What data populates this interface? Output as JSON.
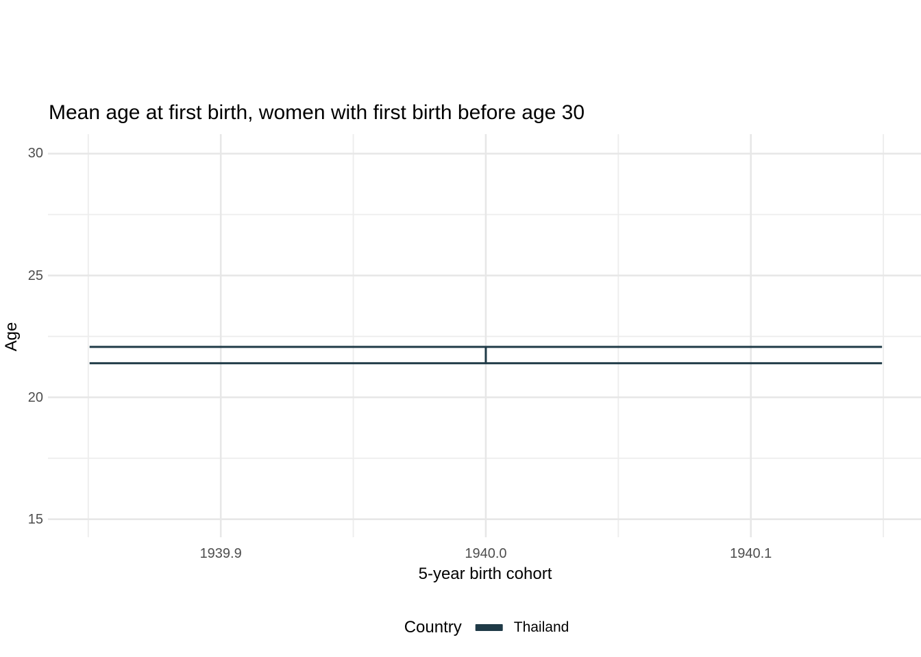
{
  "title": "Mean age at first birth, women with first birth before age 30",
  "colors": {
    "series": "#1f3a47",
    "grid_major": "#e7e7e7",
    "grid_minor": "#ededed",
    "tick_label": "#4d4d4d",
    "text": "#000000",
    "background": "#ffffff"
  },
  "legend": {
    "title": "Country",
    "items": [
      {
        "label": "Thailand",
        "color": "#1f3a47"
      }
    ]
  },
  "chart_data": {
    "type": "errorbar",
    "title": "Mean age at first birth, women with first birth before age 30",
    "xlabel": "5-year birth cohort",
    "ylabel": "Age",
    "xlim": [
      1939.8348,
      1940.1642
    ],
    "ylim": [
      14.26,
      30.8
    ],
    "x_ticks": [
      {
        "value": 1939.9,
        "label": "1939.9"
      },
      {
        "value": 1940.0,
        "label": "1940.0"
      },
      {
        "value": 1940.1,
        "label": "1940.1"
      }
    ],
    "x_minor_ticks": [
      1939.85,
      1939.95,
      1940.05,
      1940.15
    ],
    "y_ticks": [
      {
        "value": 30,
        "label": "30"
      },
      {
        "value": 25,
        "label": "25"
      },
      {
        "value": 20,
        "label": "20"
      },
      {
        "value": 15,
        "label": "15"
      }
    ],
    "y_minor_ticks": [
      17.5,
      22.5,
      27.5
    ],
    "grid": true,
    "legend_position": "bottom",
    "series": [
      {
        "name": "Thailand",
        "color": "#1f3a47",
        "points": [
          {
            "x": 1940,
            "ymin": 21.4,
            "ymax": 22.07,
            "cap_width": 0.299
          }
        ]
      }
    ]
  }
}
